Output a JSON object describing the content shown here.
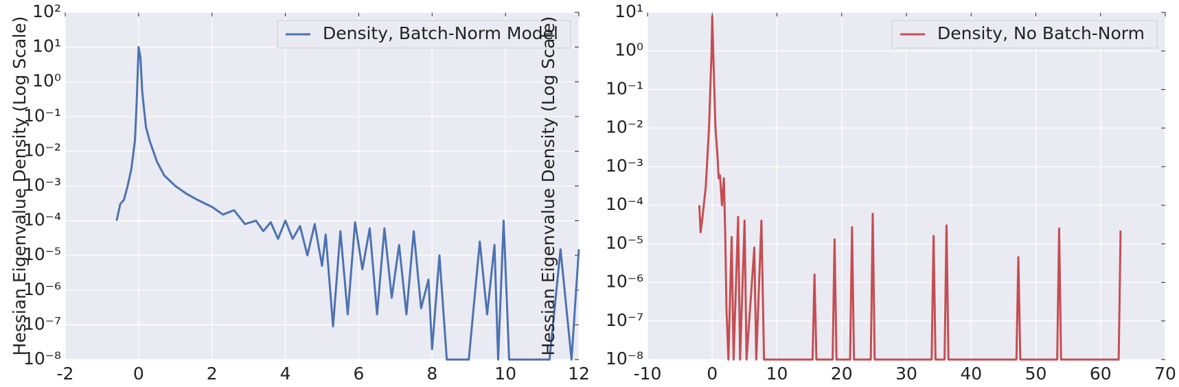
{
  "chart_data": [
    {
      "type": "line",
      "ylabel": "Hessian Eigenvalue Density (Log Scale)",
      "log_y": true,
      "grid": true,
      "legend": "upper right",
      "xlim": [
        -2,
        12
      ],
      "xticks": [
        -2,
        0,
        2,
        4,
        6,
        8,
        10,
        12
      ],
      "ylim": [
        1e-08,
        100
      ],
      "yticks": [
        {
          "value": 1e-08,
          "label": "10⁻⁸"
        },
        {
          "value": 1e-07,
          "label": "10⁻⁷"
        },
        {
          "value": 1e-06,
          "label": "10⁻⁶"
        },
        {
          "value": 1e-05,
          "label": "10⁻⁵"
        },
        {
          "value": 0.0001,
          "label": "10⁻⁴"
        },
        {
          "value": 0.001,
          "label": "10⁻³"
        },
        {
          "value": 0.01,
          "label": "10⁻²"
        },
        {
          "value": 0.1,
          "label": "10⁻¹"
        },
        {
          "value": 1,
          "label": "10⁰"
        },
        {
          "value": 10,
          "label": "10¹"
        },
        {
          "value": 100,
          "label": "10²"
        }
      ],
      "series": [
        {
          "name": "Density, Batch-Norm Model",
          "color": "#4c72b0",
          "x": [
            -0.6,
            -0.5,
            -0.4,
            -0.3,
            -0.2,
            -0.1,
            -0.05,
            0,
            0.05,
            0.1,
            0.2,
            0.3,
            0.5,
            0.7,
            1.0,
            1.3,
            1.6,
            2.0,
            2.3,
            2.6,
            2.9,
            3.2,
            3.4,
            3.6,
            3.8,
            4.0,
            4.2,
            4.4,
            4.6,
            4.8,
            5.0,
            5.1,
            5.3,
            5.5,
            5.7,
            5.9,
            6.1,
            6.3,
            6.5,
            6.7,
            6.9,
            7.1,
            7.3,
            7.5,
            7.7,
            7.9,
            8.0,
            8.2,
            8.4,
            9.0,
            9.3,
            9.5,
            9.7,
            9.8,
            9.95,
            10.1,
            11.2,
            11.5,
            11.8,
            12.0
          ],
          "values": [
            0.0001,
            0.0003,
            0.0004,
            0.001,
            0.003,
            0.02,
            0.3,
            10,
            5,
            0.5,
            0.05,
            0.02,
            0.005,
            0.002,
            0.001,
            0.0006,
            0.0004,
            0.00025,
            0.00015,
            0.0002,
            8e-05,
            0.0001,
            5e-05,
            9e-05,
            3e-05,
            0.0001,
            3e-05,
            7e-05,
            1e-05,
            8e-05,
            5e-06,
            4e-05,
            9e-08,
            5e-05,
            2e-07,
            9e-05,
            4e-06,
            6e-05,
            2e-07,
            6e-05,
            6e-07,
            2e-05,
            2e-07,
            5e-05,
            3e-07,
            2e-06,
            2e-08,
            1e-05,
            1e-08,
            1e-08,
            2.5e-05,
            2e-07,
            2e-05,
            1e-08,
            0.0001,
            1e-08,
            1e-08,
            1.5e-05,
            1e-08,
            1.5e-05
          ]
        }
      ]
    },
    {
      "type": "line",
      "ylabel": "Hessian Eigenvalue Density (Log Scale)",
      "log_y": true,
      "grid": true,
      "legend": "upper right",
      "xlim": [
        -10,
        70
      ],
      "xticks": [
        -10,
        0,
        10,
        20,
        30,
        40,
        50,
        60,
        70
      ],
      "ylim": [
        1e-08,
        10
      ],
      "yticks": [
        {
          "value": 1e-08,
          "label": "10⁻⁸"
        },
        {
          "value": 1e-07,
          "label": "10⁻⁷"
        },
        {
          "value": 1e-06,
          "label": "10⁻⁶"
        },
        {
          "value": 1e-05,
          "label": "10⁻⁵"
        },
        {
          "value": 0.0001,
          "label": "10⁻⁴"
        },
        {
          "value": 0.001,
          "label": "10⁻³"
        },
        {
          "value": 0.01,
          "label": "10⁻²"
        },
        {
          "value": 0.1,
          "label": "10⁻¹"
        },
        {
          "value": 1,
          "label": "10⁰"
        },
        {
          "value": 10,
          "label": "10¹"
        }
      ],
      "series": [
        {
          "name": "Density, No Batch-Norm",
          "color": "#c44e52",
          "x": [
            -2,
            -1.8,
            -1.5,
            -1,
            -0.5,
            -0.1,
            0,
            0.2,
            0.5,
            0.8,
            1,
            1.2,
            1.5,
            1.8,
            2,
            2.2,
            2.5,
            3,
            3.3,
            4,
            4.3,
            5,
            5.3,
            6.5,
            6.8,
            7.6,
            8,
            15.5,
            15.8,
            16.1,
            18.6,
            18.9,
            19.2,
            21.3,
            21.6,
            21.9,
            24.5,
            24.8,
            25.1,
            33.9,
            34.2,
            34.5,
            35.9,
            36.2,
            36.5,
            47,
            47.3,
            47.6,
            53.3,
            53.6,
            53.9,
            62.8,
            63.1
          ],
          "values": [
            0.0001,
            2e-05,
            5e-05,
            0.0003,
            0.01,
            1,
            8,
            0.5,
            0.01,
            0.002,
            0.0005,
            0.0006,
            0.0001,
            0.0005,
            2e-05,
            2e-07,
            1e-08,
            1.5e-05,
            1e-08,
            5e-05,
            1e-08,
            4e-05,
            1e-08,
            8e-06,
            1e-08,
            4e-05,
            1e-08,
            1e-08,
            1.6e-06,
            1e-08,
            1e-08,
            1.3e-05,
            1e-08,
            1e-08,
            2.7e-05,
            1e-08,
            1e-08,
            6e-05,
            1e-08,
            1e-08,
            1.6e-05,
            1e-08,
            1e-08,
            3e-05,
            1e-08,
            1e-08,
            4.5e-06,
            1e-08,
            1e-08,
            2.5e-05,
            1e-08,
            1e-08,
            2.2e-05
          ]
        }
      ]
    }
  ]
}
